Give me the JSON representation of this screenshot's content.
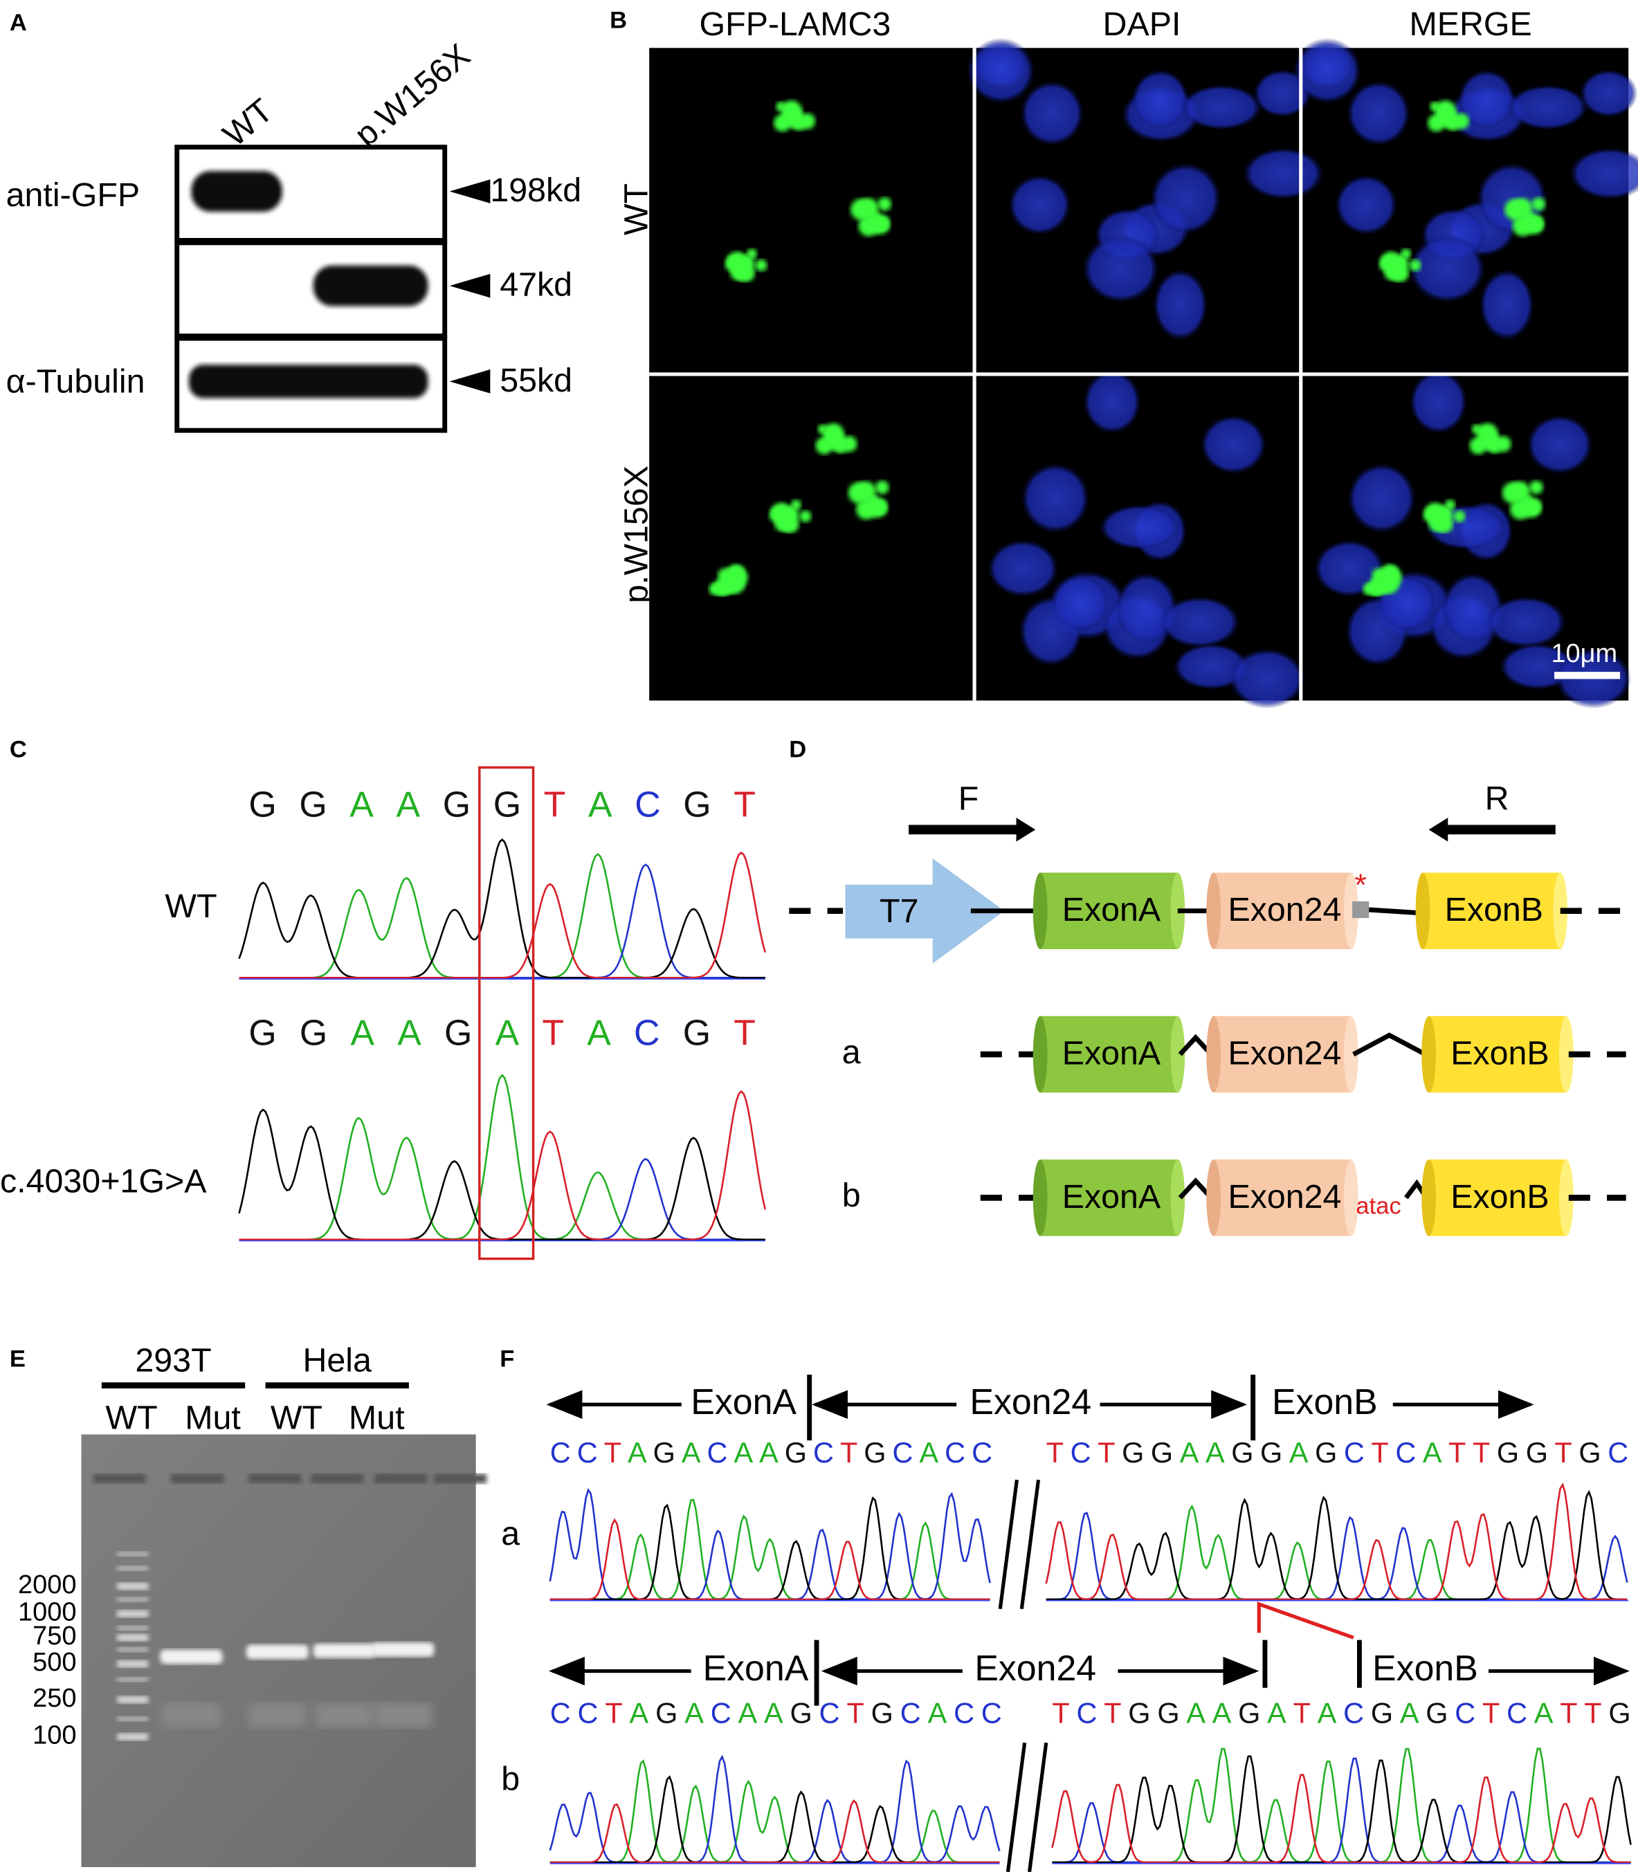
{
  "panel_a": {
    "label": "A",
    "lanes": [
      "WT",
      "p.W156X"
    ],
    "rows": [
      "anti-GFP",
      "α-Tubulin"
    ],
    "sizes": [
      "198kd",
      "47kd",
      "55kd"
    ]
  },
  "panel_b": {
    "label": "B",
    "columns": [
      "GFP-LAMC3",
      "DAPI",
      "MERGE"
    ],
    "rows": [
      "WT",
      "p.W156X"
    ],
    "scale_bar": "10μm"
  },
  "panel_c": {
    "label": "C",
    "tracks": [
      {
        "name": "WT",
        "sequence": "GGAAGGTACGT"
      },
      {
        "name": "c.4030+1G>A",
        "sequence": "GGAAGATACGT"
      }
    ]
  },
  "panel_d": {
    "label": "D",
    "primers": [
      "F",
      "R"
    ],
    "promoter": "T7",
    "exons": [
      "ExonA",
      "Exon24",
      "ExonB"
    ],
    "marker": "*",
    "isoforms": [
      {
        "name": "a",
        "exons": [
          "ExonA",
          "Exon24",
          "ExonB"
        ]
      },
      {
        "name": "b",
        "exons": [
          "ExonA",
          "Exon24",
          "ExonB"
        ],
        "insert": "atac"
      }
    ]
  },
  "panel_e": {
    "label": "E",
    "cell_lines": [
      "293T",
      "Hela"
    ],
    "lanes": [
      "WT",
      "Mut",
      "WT",
      "Mut"
    ],
    "ladder": [
      2000,
      1000,
      750,
      500,
      250,
      100
    ]
  },
  "panel_f": {
    "label": "F",
    "tracks": [
      {
        "name": "a",
        "regions": [
          "ExonA",
          "Exon24",
          "ExonB"
        ],
        "sequence_left": "CCTAGACAAGCTGCACC",
        "sequence_right": "TCTGGAAGGAGCTCATTGGTGC"
      },
      {
        "name": "b",
        "regions": [
          "ExonA",
          "Exon24",
          "ExonB"
        ],
        "sequence_left": "CCTAGACAAGCTGCACC",
        "sequence_right": "TCTGGAAGATACGAGCTCATTG"
      }
    ]
  }
}
